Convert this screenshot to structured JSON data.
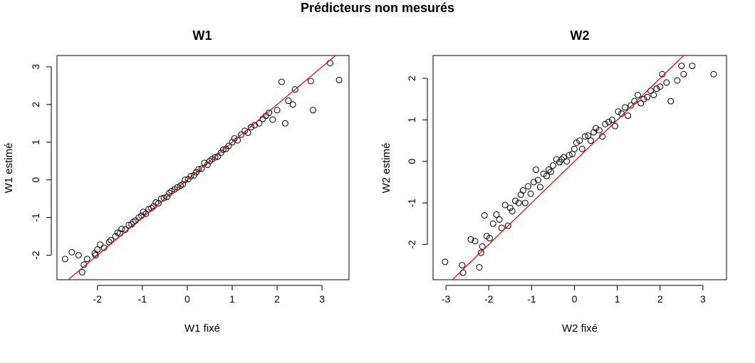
{
  "figure": {
    "title": "Prédicteurs non mesurés"
  },
  "chart_data": [
    {
      "type": "scatter",
      "title": "W1",
      "xlabel": "W1 fixé",
      "ylabel": "W1 estimé",
      "xlim": [
        -2.9,
        3.6
      ],
      "ylim": [
        -2.65,
        3.3
      ],
      "xticks": [
        -2,
        -1,
        0,
        1,
        2,
        3
      ],
      "yticks": [
        -2,
        -1,
        0,
        1,
        2,
        3
      ],
      "grid": false,
      "point_color": "#000000",
      "reference_line": {
        "intercept": 0,
        "slope": 1,
        "color": "#e00000"
      },
      "x": [
        -2.72,
        -2.57,
        -2.42,
        -2.34,
        -2.3,
        -2.23,
        -2.06,
        -2.04,
        -2.0,
        -1.94,
        -1.85,
        -1.74,
        -1.7,
        -1.6,
        -1.55,
        -1.5,
        -1.46,
        -1.38,
        -1.3,
        -1.24,
        -1.2,
        -1.15,
        -1.08,
        -1.02,
        -0.98,
        -0.92,
        -0.86,
        -0.8,
        -0.75,
        -0.7,
        -0.64,
        -0.58,
        -0.52,
        -0.45,
        -0.4,
        -0.35,
        -0.28,
        -0.22,
        -0.15,
        -0.1,
        -0.05,
        0.02,
        0.08,
        0.15,
        0.2,
        0.25,
        0.32,
        0.38,
        0.45,
        0.5,
        0.55,
        0.62,
        0.68,
        0.75,
        0.8,
        0.86,
        0.92,
        1.0,
        1.05,
        1.12,
        1.2,
        1.28,
        1.35,
        1.42,
        1.5,
        1.6,
        1.68,
        1.75,
        1.82,
        1.9,
        2.0,
        2.1,
        2.18,
        2.25,
        2.35,
        2.4,
        2.75,
        2.8,
        3.18,
        3.38
      ],
      "y": [
        -2.1,
        -1.92,
        -2.0,
        -2.45,
        -2.25,
        -2.1,
        -1.95,
        -2.0,
        -1.85,
        -1.72,
        -1.8,
        -1.65,
        -1.6,
        -1.5,
        -1.4,
        -1.42,
        -1.3,
        -1.32,
        -1.2,
        -1.18,
        -1.12,
        -1.08,
        -1.0,
        -0.95,
        -0.85,
        -0.9,
        -0.78,
        -0.75,
        -0.7,
        -0.6,
        -0.62,
        -0.5,
        -0.48,
        -0.45,
        -0.35,
        -0.3,
        -0.25,
        -0.2,
        -0.15,
        -0.12,
        0.0,
        0.02,
        0.1,
        0.12,
        0.2,
        0.28,
        0.3,
        0.45,
        0.4,
        0.5,
        0.55,
        0.6,
        0.62,
        0.72,
        0.8,
        0.82,
        0.9,
        1.0,
        1.1,
        1.05,
        1.2,
        1.3,
        1.25,
        1.4,
        1.45,
        1.5,
        1.62,
        1.7,
        1.78,
        1.6,
        1.85,
        2.6,
        1.5,
        2.1,
        2.0,
        2.4,
        2.62,
        1.85,
        3.1,
        2.65
      ]
    },
    {
      "type": "scatter",
      "title": "W2",
      "xlabel": "W2 fixé",
      "ylabel": "W2 estimé",
      "xlim": [
        -3.3,
        3.55
      ],
      "ylim": [
        -2.85,
        2.55
      ],
      "xticks": [
        -3,
        -2,
        -1,
        0,
        1,
        2,
        3
      ],
      "yticks": [
        -2,
        -1,
        0,
        1,
        2
      ],
      "grid": false,
      "point_color": "#000000",
      "reference_line": {
        "intercept": 0,
        "slope": 1,
        "color": "#e00000"
      },
      "x": [
        -3.02,
        -2.62,
        -2.6,
        -2.42,
        -2.32,
        -2.22,
        -2.18,
        -2.15,
        -2.1,
        -2.05,
        -1.98,
        -1.9,
        -1.82,
        -1.75,
        -1.7,
        -1.62,
        -1.55,
        -1.5,
        -1.45,
        -1.38,
        -1.3,
        -1.25,
        -1.2,
        -1.15,
        -1.08,
        -1.02,
        -0.95,
        -0.9,
        -0.85,
        -0.8,
        -0.72,
        -0.65,
        -0.6,
        -0.55,
        -0.5,
        -0.42,
        -0.35,
        -0.3,
        -0.25,
        -0.18,
        -0.12,
        -0.05,
        0.0,
        0.05,
        0.12,
        0.18,
        0.25,
        0.32,
        0.38,
        0.45,
        0.5,
        0.58,
        0.65,
        0.72,
        0.8,
        0.88,
        0.95,
        1.02,
        1.1,
        1.18,
        1.25,
        1.32,
        1.4,
        1.48,
        1.55,
        1.62,
        1.7,
        1.78,
        1.85,
        1.92,
        2.0,
        2.05,
        2.15,
        2.25,
        2.4,
        2.5,
        2.55,
        2.75,
        3.25
      ],
      "y": [
        -2.42,
        -2.5,
        -2.68,
        -1.88,
        -1.92,
        -2.55,
        -2.2,
        -2.05,
        -1.3,
        -1.8,
        -1.85,
        -1.5,
        -1.28,
        -1.4,
        -1.6,
        -1.05,
        -1.55,
        -1.12,
        -1.2,
        -0.95,
        -1.0,
        -0.8,
        -0.7,
        -1.0,
        -0.6,
        -0.78,
        -0.5,
        -0.2,
        -0.45,
        -0.62,
        -0.3,
        -0.35,
        -0.2,
        -0.25,
        -0.1,
        0.05,
        -0.02,
        0.05,
        0.1,
        0.0,
        0.15,
        0.18,
        0.3,
        0.45,
        0.5,
        0.3,
        0.6,
        0.62,
        0.5,
        0.7,
        0.8,
        0.75,
        0.6,
        0.9,
        0.95,
        1.0,
        0.85,
        1.2,
        1.15,
        1.3,
        1.1,
        1.35,
        1.45,
        1.6,
        1.4,
        1.5,
        1.55,
        1.7,
        1.6,
        1.75,
        1.8,
        2.1,
        1.9,
        1.45,
        1.95,
        2.3,
        2.1,
        2.3,
        2.1
      ]
    }
  ]
}
